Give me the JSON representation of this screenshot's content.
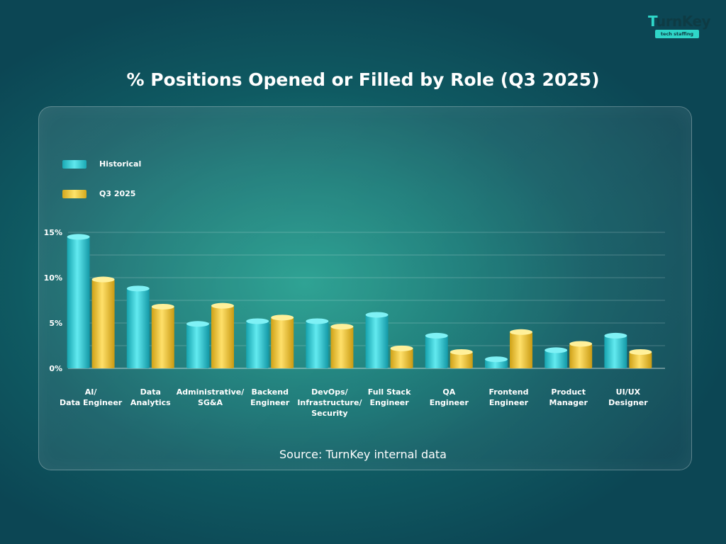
{
  "brand": {
    "logo_text_accent": "T",
    "logo_text_main": "urnKey",
    "logo_tagline": "tech staffing"
  },
  "title": "% Positions Opened or Filled by Role (Q3 2025)",
  "source": "Source: TurnKey internal data",
  "legend": [
    {
      "label": "Historical",
      "color": "#36d3db"
    },
    {
      "label": "Q3 2025",
      "color": "#f2c93b"
    }
  ],
  "chart_data": {
    "type": "bar",
    "title": "% Positions Opened or Filled by Role (Q3 2025)",
    "xlabel": "",
    "ylabel": "",
    "ylim": [
      0,
      15
    ],
    "yticks": [
      "0%",
      "5%",
      "10%",
      "15%"
    ],
    "grid": true,
    "legend_position": "top-left",
    "categories": [
      [
        "AI/",
        "Data Engineer"
      ],
      [
        "Data",
        "Analytics"
      ],
      [
        "Administrative/",
        "SG&A"
      ],
      [
        "Backend",
        "Engineer"
      ],
      [
        "DevOps/",
        "Infrastructure/",
        "Security"
      ],
      [
        "Full Stack",
        "Engineer"
      ],
      [
        "QA",
        "Engineer"
      ],
      [
        "Frontend",
        "Engineer"
      ],
      [
        "Product",
        "Manager"
      ],
      [
        "UI/UX",
        "Designer"
      ]
    ],
    "series": [
      {
        "name": "Historical",
        "color": "#36d3db",
        "values": [
          14.5,
          8.8,
          4.9,
          5.2,
          5.2,
          5.9,
          3.6,
          1.0,
          2.0,
          3.6
        ]
      },
      {
        "name": "Q3 2025",
        "color": "#f2c93b",
        "values": [
          9.8,
          6.8,
          6.9,
          5.6,
          4.6,
          2.2,
          1.8,
          4.0,
          2.7,
          1.8
        ]
      }
    ]
  }
}
